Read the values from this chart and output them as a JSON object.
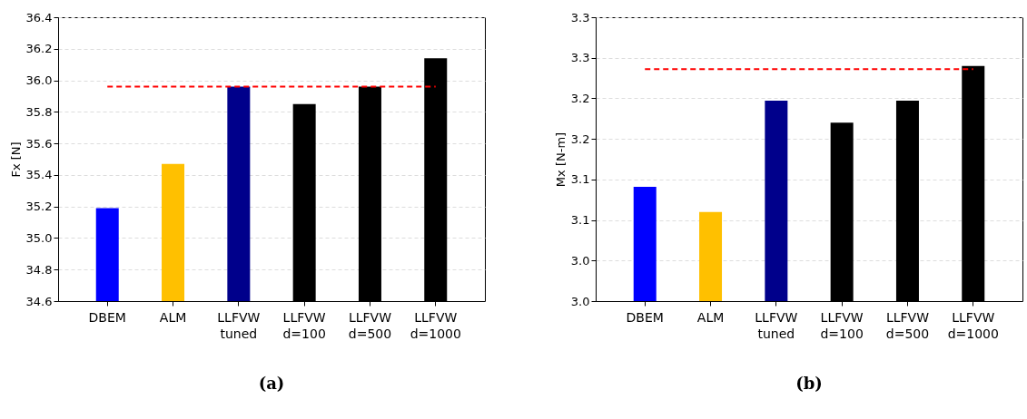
{
  "chart_data": [
    {
      "type": "bar",
      "title": "(a)",
      "ylabel": "Fx [N]",
      "categories": [
        "DBEM",
        "ALM",
        "LLFVW\ntuned",
        "LLFVW\nd=100",
        "LLFVW\nd=500",
        "LLFVW\nd=1000"
      ],
      "values": [
        35.19,
        35.47,
        35.96,
        35.85,
        35.96,
        36.14
      ],
      "colors": [
        "#0000ff",
        "#ffc000",
        "#00008b",
        "#000000",
        "#000000",
        "#000000"
      ],
      "ylim": [
        34.6,
        36.4
      ],
      "yticks": [
        {
          "value": 34.6,
          "label": "34.6"
        },
        {
          "value": 34.8,
          "label": "34.8"
        },
        {
          "value": 35.0,
          "label": "35.0"
        },
        {
          "value": 35.2,
          "label": "35.2"
        },
        {
          "value": 35.4,
          "label": "35.4"
        },
        {
          "value": 35.6,
          "label": "35.6"
        },
        {
          "value": 35.8,
          "label": "35.8"
        },
        {
          "value": 36.0,
          "label": "36.0"
        },
        {
          "value": 36.2,
          "label": "36.2"
        },
        {
          "value": 36.4,
          "label": "36.4"
        }
      ],
      "grid": "y",
      "legend": false,
      "ref_lines": [
        {
          "axis": "y",
          "value": 35.96,
          "color": "#ff0000",
          "line_style": "dashed"
        }
      ]
    },
    {
      "type": "bar",
      "title": "(b)",
      "ylabel": "Mx [N-m]",
      "categories": [
        "DBEM",
        "ALM",
        "LLFVW\ntuned",
        "LLFVW\nd=100",
        "LLFVW\nd=500",
        "LLFVW\nd=1000"
      ],
      "values": [
        3.141,
        3.11,
        3.247,
        3.22,
        3.247,
        3.29
      ],
      "colors": [
        "#0000ff",
        "#ffc000",
        "#00008b",
        "#000000",
        "#000000",
        "#000000"
      ],
      "ylim": [
        3.0,
        3.35
      ],
      "yticks": [
        {
          "value": 3.0,
          "label": "3.0"
        },
        {
          "value": 3.05,
          "label": "3.0"
        },
        {
          "value": 3.1,
          "label": "3.1"
        },
        {
          "value": 3.15,
          "label": "3.1"
        },
        {
          "value": 3.2,
          "label": "3.2"
        },
        {
          "value": 3.25,
          "label": "3.2"
        },
        {
          "value": 3.3,
          "label": "3.3"
        },
        {
          "value": 3.35,
          "label": "3.3"
        }
      ],
      "grid": "y",
      "legend": false,
      "ref_lines": [
        {
          "axis": "y",
          "value": 3.286,
          "color": "#ff0000",
          "line_style": "dashed"
        }
      ]
    }
  ]
}
